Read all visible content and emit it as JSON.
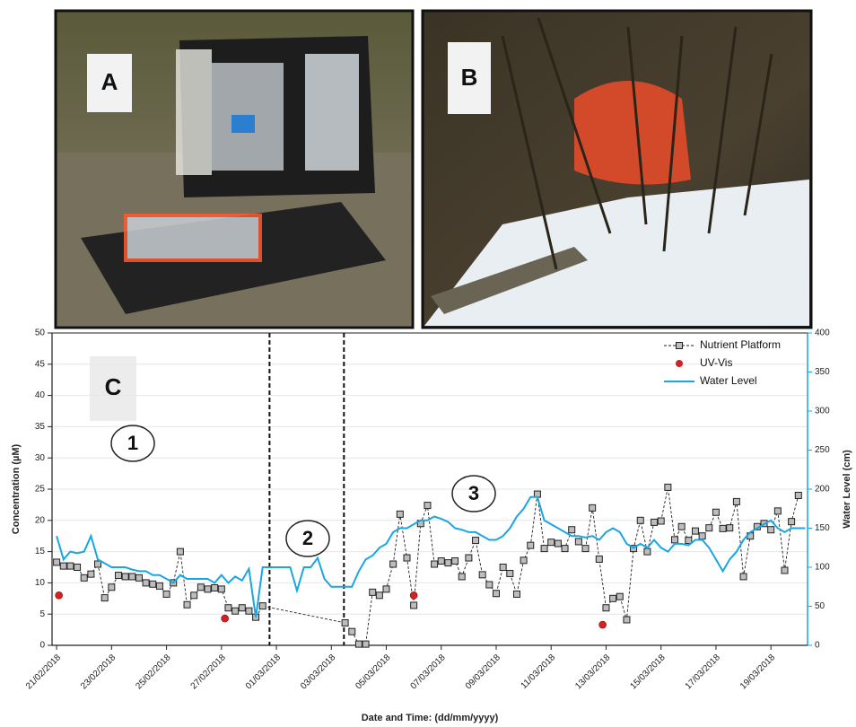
{
  "photos": [
    {
      "label": "A"
    },
    {
      "label": "B"
    }
  ],
  "chart_data": {
    "type": "line",
    "panel_label": "C",
    "xlabel": "Date and Time: (dd/mm/yyyy)",
    "ylabel": "Concentration (µM)",
    "y2label": "Water Level (cm)",
    "annotations": [
      "1",
      "2",
      "3"
    ],
    "xlim": [
      "2018-02-20T20:00",
      "2018-03-20T08:00"
    ],
    "xticks": [
      {
        "value": "2018-02-21T00:00",
        "label": "21/02/2018"
      },
      {
        "value": "2018-02-23T00:00",
        "label": "23/02/2018"
      },
      {
        "value": "2018-02-25T00:00",
        "label": "25/02/2018"
      },
      {
        "value": "2018-02-27T00:00",
        "label": "27/02/2018"
      },
      {
        "value": "2018-03-01T00:00",
        "label": "01/03/2018"
      },
      {
        "value": "2018-03-03T00:00",
        "label": "03/03/2018"
      },
      {
        "value": "2018-03-05T00:00",
        "label": "05/03/2018"
      },
      {
        "value": "2018-03-07T00:00",
        "label": "07/03/2018"
      },
      {
        "value": "2018-03-09T00:00",
        "label": "09/03/2018"
      },
      {
        "value": "2018-03-11T00:00",
        "label": "11/03/2018"
      },
      {
        "value": "2018-03-13T00:00",
        "label": "13/03/2018"
      },
      {
        "value": "2018-03-15T00:00",
        "label": "15/03/2018"
      },
      {
        "value": "2018-03-17T00:00",
        "label": "17/03/2018"
      },
      {
        "value": "2018-03-19T00:00",
        "label": "19/03/2018"
      }
    ],
    "ylim": [
      0,
      50
    ],
    "yticks": [
      0,
      5,
      10,
      15,
      20,
      25,
      30,
      35,
      40,
      45,
      50
    ],
    "y2lim": [
      0,
      400
    ],
    "y2ticks": [
      0,
      50,
      100,
      150,
      200,
      250,
      300,
      350,
      400
    ],
    "grid": true,
    "legend": "upper right",
    "period_dividers": [
      "2018-02-28T18:00",
      "2018-03-03T11:00"
    ],
    "series": [
      {
        "name": "Nutrient Platform",
        "color": "#222222",
        "marker": "square",
        "x": [
          "2018-02-21T00:00",
          "2018-02-21T06:00",
          "2018-02-21T12:00",
          "2018-02-21T18:00",
          "2018-02-22T00:00",
          "2018-02-22T06:00",
          "2018-02-22T12:00",
          "2018-02-22T18:00",
          "2018-02-23T00:00",
          "2018-02-23T06:00",
          "2018-02-23T12:00",
          "2018-02-23T18:00",
          "2018-02-24T00:00",
          "2018-02-24T06:00",
          "2018-02-24T12:00",
          "2018-02-24T18:00",
          "2018-02-25T00:00",
          "2018-02-25T06:00",
          "2018-02-25T12:00",
          "2018-02-25T18:00",
          "2018-02-26T00:00",
          "2018-02-26T06:00",
          "2018-02-26T12:00",
          "2018-02-26T18:00",
          "2018-02-27T00:00",
          "2018-02-27T06:00",
          "2018-02-27T12:00",
          "2018-02-27T18:00",
          "2018-02-28T00:00",
          "2018-02-28T06:00",
          "2018-02-28T12:00",
          "2018-03-03T12:00",
          "2018-03-03T18:00",
          "2018-03-04T00:00",
          "2018-03-04T06:00",
          "2018-03-04T12:00",
          "2018-03-04T18:00",
          "2018-03-05T00:00",
          "2018-03-05T06:00",
          "2018-03-05T12:00",
          "2018-03-05T18:00",
          "2018-03-06T00:00",
          "2018-03-06T06:00",
          "2018-03-06T12:00",
          "2018-03-06T18:00",
          "2018-03-07T00:00",
          "2018-03-07T06:00",
          "2018-03-07T12:00",
          "2018-03-07T18:00",
          "2018-03-08T00:00",
          "2018-03-08T06:00",
          "2018-03-08T12:00",
          "2018-03-08T18:00",
          "2018-03-09T00:00",
          "2018-03-09T06:00",
          "2018-03-09T12:00",
          "2018-03-09T18:00",
          "2018-03-10T00:00",
          "2018-03-10T06:00",
          "2018-03-10T12:00",
          "2018-03-10T18:00",
          "2018-03-11T00:00",
          "2018-03-11T06:00",
          "2018-03-11T12:00",
          "2018-03-11T18:00",
          "2018-03-12T00:00",
          "2018-03-12T06:00",
          "2018-03-12T12:00",
          "2018-03-12T18:00",
          "2018-03-13T00:00",
          "2018-03-13T06:00",
          "2018-03-13T12:00",
          "2018-03-13T18:00",
          "2018-03-14T00:00",
          "2018-03-14T06:00",
          "2018-03-14T12:00",
          "2018-03-14T18:00",
          "2018-03-15T00:00",
          "2018-03-15T06:00",
          "2018-03-15T12:00",
          "2018-03-15T18:00",
          "2018-03-16T00:00",
          "2018-03-16T06:00",
          "2018-03-16T12:00",
          "2018-03-16T18:00",
          "2018-03-17T00:00",
          "2018-03-17T06:00",
          "2018-03-17T12:00",
          "2018-03-17T18:00",
          "2018-03-18T00:00",
          "2018-03-18T06:00",
          "2018-03-18T12:00",
          "2018-03-18T18:00",
          "2018-03-19T00:00",
          "2018-03-19T06:00",
          "2018-03-19T12:00",
          "2018-03-19T18:00",
          "2018-03-20T00:00"
        ],
        "values": [
          13.3,
          12.7,
          12.7,
          12.5,
          10.8,
          11.4,
          13.0,
          7.6,
          9.3,
          11.2,
          11.0,
          11.0,
          10.8,
          10.0,
          9.8,
          9.5,
          8.2,
          10.0,
          15.0,
          6.5,
          8.0,
          9.3,
          9.0,
          9.2,
          9.0,
          6.0,
          5.5,
          6.0,
          5.5,
          4.5,
          6.3,
          3.6,
          2.2,
          0.2,
          0.2,
          8.5,
          8.0,
          9.0,
          13.0,
          21.0,
          14.0,
          6.4,
          19.5,
          22.4,
          13.0,
          13.5,
          13.2,
          13.5,
          11.0,
          14.0,
          16.8,
          11.3,
          9.7,
          8.3,
          12.5,
          11.5,
          8.2,
          13.6,
          16.0,
          24.2,
          15.5,
          16.5,
          16.3,
          15.5,
          18.5,
          16.6,
          15.5,
          22.0,
          13.8,
          6.0,
          7.5,
          7.8,
          4.1,
          15.5,
          20.0,
          15.0,
          19.7,
          19.9,
          25.3,
          16.9,
          19.0,
          16.8,
          18.3,
          17.5,
          18.8,
          21.3,
          18.7,
          18.8,
          23.0,
          11.0,
          17.5,
          19.0,
          19.5,
          18.5,
          21.5,
          12.0,
          19.8,
          24.0
        ]
      },
      {
        "name": "UV-Vis",
        "color": "#d42020",
        "marker": "circle",
        "x": [
          "2018-02-21T02:00",
          "2018-02-27T03:00",
          "2018-03-06T00:00",
          "2018-03-12T21:00"
        ],
        "values": [
          8.0,
          4.3,
          8.0,
          3.3
        ]
      },
      {
        "name": "Water Level",
        "color": "#19a6e2",
        "axis": "y2",
        "x": [
          "2018-02-21T00:00",
          "2018-02-21T06:00",
          "2018-02-21T12:00",
          "2018-02-21T18:00",
          "2018-02-22T00:00",
          "2018-02-22T06:00",
          "2018-02-22T12:00",
          "2018-02-22T18:00",
          "2018-02-23T00:00",
          "2018-02-23T06:00",
          "2018-02-23T12:00",
          "2018-02-23T18:00",
          "2018-02-24T00:00",
          "2018-02-24T06:00",
          "2018-02-24T12:00",
          "2018-02-24T18:00",
          "2018-02-25T00:00",
          "2018-02-25T06:00",
          "2018-02-25T12:00",
          "2018-02-25T18:00",
          "2018-02-26T00:00",
          "2018-02-26T06:00",
          "2018-02-26T12:00",
          "2018-02-26T18:00",
          "2018-02-27T00:00",
          "2018-02-27T06:00",
          "2018-02-27T12:00",
          "2018-02-27T18:00",
          "2018-02-28T00:00",
          "2018-02-28T06:00",
          "2018-02-28T12:00",
          "2018-02-28T18:00",
          "2018-03-01T00:00",
          "2018-03-01T06:00",
          "2018-03-01T12:00",
          "2018-03-01T18:00",
          "2018-03-02T00:00",
          "2018-03-02T06:00",
          "2018-03-02T12:00",
          "2018-03-02T18:00",
          "2018-03-03T00:00",
          "2018-03-03T06:00",
          "2018-03-03T12:00",
          "2018-03-03T18:00",
          "2018-03-04T00:00",
          "2018-03-04T06:00",
          "2018-03-04T12:00",
          "2018-03-04T18:00",
          "2018-03-05T00:00",
          "2018-03-05T06:00",
          "2018-03-05T12:00",
          "2018-03-05T18:00",
          "2018-03-06T00:00",
          "2018-03-06T06:00",
          "2018-03-06T12:00",
          "2018-03-06T18:00",
          "2018-03-07T00:00",
          "2018-03-07T06:00",
          "2018-03-07T12:00",
          "2018-03-07T18:00",
          "2018-03-08T00:00",
          "2018-03-08T06:00",
          "2018-03-08T12:00",
          "2018-03-08T18:00",
          "2018-03-09T00:00",
          "2018-03-09T06:00",
          "2018-03-09T12:00",
          "2018-03-09T18:00",
          "2018-03-10T00:00",
          "2018-03-10T06:00",
          "2018-03-10T12:00",
          "2018-03-10T18:00",
          "2018-03-11T00:00",
          "2018-03-11T06:00",
          "2018-03-11T12:00",
          "2018-03-11T18:00",
          "2018-03-12T00:00",
          "2018-03-12T06:00",
          "2018-03-12T12:00",
          "2018-03-12T18:00",
          "2018-03-13T00:00",
          "2018-03-13T06:00",
          "2018-03-13T12:00",
          "2018-03-13T18:00",
          "2018-03-14T00:00",
          "2018-03-14T06:00",
          "2018-03-14T12:00",
          "2018-03-14T18:00",
          "2018-03-15T00:00",
          "2018-03-15T06:00",
          "2018-03-15T12:00",
          "2018-03-15T18:00",
          "2018-03-16T00:00",
          "2018-03-16T06:00",
          "2018-03-16T12:00",
          "2018-03-16T18:00",
          "2018-03-17T00:00",
          "2018-03-17T06:00",
          "2018-03-17T12:00",
          "2018-03-17T18:00",
          "2018-03-18T00:00",
          "2018-03-18T06:00",
          "2018-03-18T12:00",
          "2018-03-18T18:00",
          "2018-03-19T00:00",
          "2018-03-19T06:00",
          "2018-03-19T12:00",
          "2018-03-19T18:00",
          "2018-03-20T00:00",
          "2018-03-20T06:00"
        ],
        "values": [
          140,
          110,
          120,
          118,
          120,
          140,
          110,
          105,
          100,
          100,
          100,
          97,
          95,
          95,
          90,
          90,
          85,
          80,
          90,
          85,
          85,
          85,
          85,
          80,
          90,
          80,
          88,
          83,
          98,
          36,
          100,
          100,
          100,
          100,
          100,
          70,
          100,
          100,
          112,
          85,
          75,
          75,
          75,
          75,
          95,
          110,
          115,
          125,
          130,
          145,
          150,
          150,
          155,
          160,
          160,
          165,
          162,
          158,
          150,
          148,
          145,
          145,
          140,
          135,
          135,
          140,
          150,
          165,
          175,
          190,
          190,
          160,
          155,
          150,
          145,
          140,
          140,
          138,
          140,
          135,
          145,
          150,
          145,
          130,
          125,
          130,
          125,
          135,
          125,
          120,
          130,
          130,
          128,
          135,
          135,
          125,
          110,
          95,
          110,
          120,
          135,
          145,
          150,
          155,
          160,
          150,
          145,
          150,
          150,
          150
        ]
      }
    ]
  }
}
